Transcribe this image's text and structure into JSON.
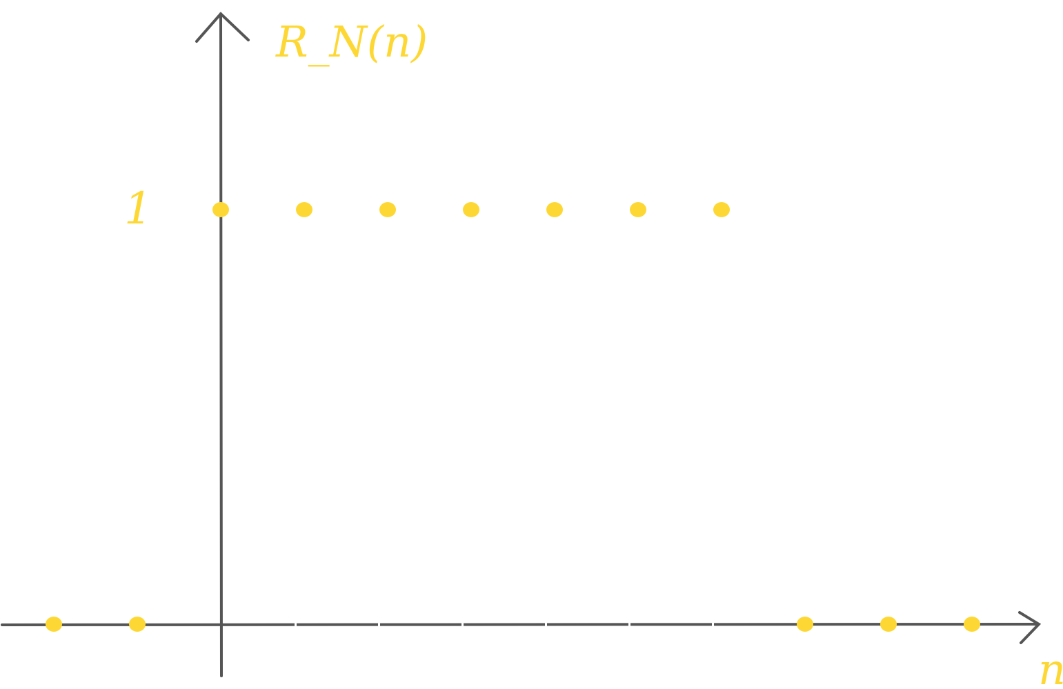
{
  "chart_data": {
    "type": "scatter",
    "title": "",
    "xlabel": "n",
    "ylabel": "R_N(n)",
    "ytick_labels": [
      "1"
    ],
    "x": [
      -2,
      -1,
      0,
      1,
      2,
      3,
      4,
      5,
      6,
      7,
      8,
      9
    ],
    "y": [
      0,
      0,
      1,
      1,
      1,
      1,
      1,
      1,
      1,
      0,
      0,
      0
    ],
    "ylim": [
      0,
      1
    ],
    "grid": false,
    "marker_color": "#FDD835",
    "axis_color": "#555555"
  }
}
